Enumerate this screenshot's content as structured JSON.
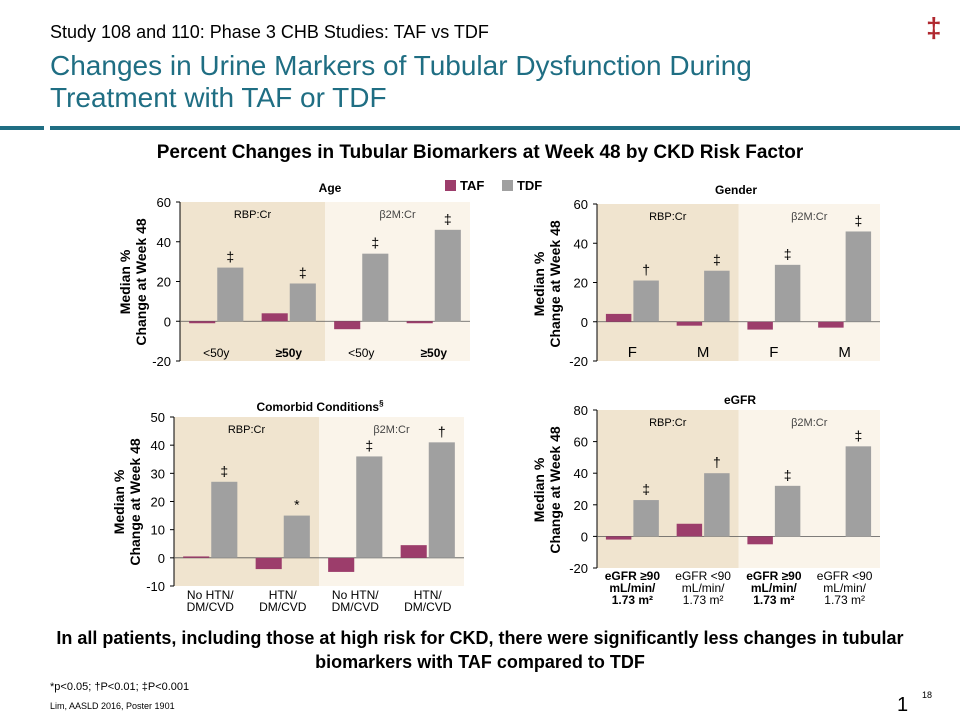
{
  "header": {
    "study": "Study 108 and 110: Phase 3 CHB Studies: TAF vs TDF",
    "title": "Changes in Urine Markers of Tubular Dysfunction During Treatment with TAF or TDF",
    "logo_glyph": "‡",
    "subtitle": "Percent Changes in Tubular Biomarkers at Week 48 by CKD Risk Factor"
  },
  "legend": {
    "taf_label": "TAF",
    "tdf_label": "TDF",
    "taf_color": "#9c3d6b",
    "tdf_color": "#a0a0a0"
  },
  "colors": {
    "panel_rbp": "#f0e4cf",
    "panel_b2m": "#faf4ea",
    "title_teal": "#1f6e83",
    "logo_red": "#b0282f"
  },
  "chart_data": [
    {
      "type": "bar",
      "title": "Age",
      "ylabel": "Median % Change at Week 48",
      "ylim": [
        -20,
        60
      ],
      "yticks": [
        -20,
        0,
        20,
        40,
        60
      ],
      "groups": [
        "RBP:Cr",
        "β2M:Cr"
      ],
      "categories": [
        "<50y",
        "≥50y",
        "<50y",
        "≥50y"
      ],
      "category_bold": [
        false,
        true,
        false,
        true
      ],
      "series": [
        {
          "name": "TAF",
          "values": [
            -1,
            4,
            -4,
            -1
          ]
        },
        {
          "name": "TDF",
          "values": [
            27,
            19,
            34,
            46
          ]
        }
      ],
      "annotations": [
        "‡",
        "‡",
        "‡",
        "‡"
      ]
    },
    {
      "type": "bar",
      "title": "Gender",
      "ylabel": "Median % Change at Week 48",
      "ylim": [
        -20,
        60
      ],
      "yticks": [
        -20,
        0,
        20,
        40,
        60
      ],
      "groups": [
        "RBP:Cr",
        "β2M:Cr"
      ],
      "categories": [
        "F",
        "M",
        "F",
        "M"
      ],
      "category_bold": [
        false,
        false,
        false,
        false
      ],
      "series": [
        {
          "name": "TAF",
          "values": [
            4,
            -2,
            -4,
            -3
          ]
        },
        {
          "name": "TDF",
          "values": [
            21,
            26,
            29,
            46
          ]
        }
      ],
      "annotations": [
        "†",
        "‡",
        "‡",
        "‡"
      ]
    },
    {
      "type": "bar",
      "title": "Comorbid Conditions",
      "title_sup": "§",
      "ylabel": "Median % Change at Week 48",
      "ylim": [
        -10,
        50
      ],
      "yticks": [
        -10,
        0,
        10,
        20,
        30,
        40,
        50
      ],
      "groups": [
        "RBP:Cr",
        "β2M:Cr"
      ],
      "categories": [
        [
          "No HTN/",
          "DM/CVD"
        ],
        [
          "HTN/",
          "DM/CVD"
        ],
        [
          "No HTN/",
          "DM/CVD"
        ],
        [
          "HTN/",
          "DM/CVD"
        ]
      ],
      "category_bold": [
        false,
        false,
        false,
        false
      ],
      "series": [
        {
          "name": "TAF",
          "values": [
            0.5,
            -4,
            -5,
            4.5
          ]
        },
        {
          "name": "TDF",
          "values": [
            27,
            15,
            36,
            41
          ]
        }
      ],
      "annotations": [
        "‡",
        "*",
        "‡",
        "†"
      ]
    },
    {
      "type": "bar",
      "title": "eGFR",
      "ylabel": "Median % Change at Week 48",
      "ylim": [
        -20,
        80
      ],
      "yticks": [
        -20,
        0,
        20,
        40,
        60,
        80
      ],
      "groups": [
        "RBP:Cr",
        "β2M:Cr"
      ],
      "categories": [
        [
          "eGFR ≥90",
          "mL/min/",
          "1.73 m²"
        ],
        [
          "eGFR <90",
          "mL/min/",
          "1.73 m²"
        ],
        [
          "eGFR ≥90",
          "mL/min/",
          "1.73 m²"
        ],
        [
          "eGFR <90",
          "mL/min/",
          "1.73 m²"
        ]
      ],
      "category_bold": [
        true,
        false,
        true,
        false
      ],
      "series": [
        {
          "name": "TAF",
          "values": [
            -2,
            8,
            -5,
            0
          ]
        },
        {
          "name": "TDF",
          "values": [
            23,
            40,
            32,
            57
          ]
        }
      ],
      "annotations": [
        "‡",
        "†",
        "‡",
        "‡"
      ]
    }
  ],
  "conclusion": "In all patients, including those at high risk for CKD, there were significantly less changes in tubular biomarkers with TAF compared to TDF",
  "footnote": "*p<0.05; †P<0.01; ‡P<0.001",
  "citation": "Lim, AASLD 2016, Poster 1901",
  "page_number": "1",
  "slide_number": "18"
}
